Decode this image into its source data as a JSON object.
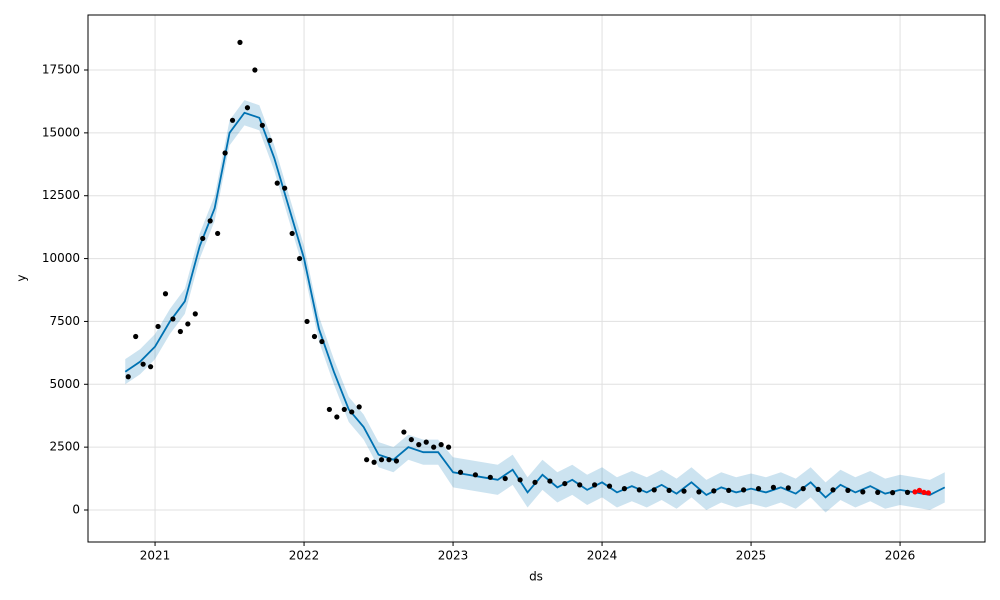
{
  "chart_data": {
    "type": "forecast",
    "x_label": "ds",
    "y_label": "y",
    "xlim": [
      2020.55,
      2026.57
    ],
    "ylim": [
      -1273,
      19688
    ],
    "xticks": [
      2021,
      2022,
      2023,
      2024,
      2025,
      2026
    ],
    "yticks": [
      0,
      2500,
      5000,
      7500,
      10000,
      12500,
      15000,
      17500
    ],
    "grid": true,
    "series": [
      {
        "kind": "band",
        "color": "#0072B2",
        "x": [
          2020.8,
          2020.9,
          2021.0,
          2021.1,
          2021.2,
          2021.3,
          2021.4,
          2021.5,
          2021.6,
          2021.7,
          2021.8,
          2021.9,
          2022.0,
          2022.1,
          2022.2,
          2022.3,
          2022.4,
          2022.5,
          2022.6,
          2022.7,
          2022.8,
          2022.9,
          2023.0,
          2023.1,
          2023.2,
          2023.3,
          2023.4,
          2023.5,
          2023.6,
          2023.7,
          2023.8,
          2023.9,
          2024.0,
          2024.1,
          2024.2,
          2024.3,
          2024.4,
          2024.5,
          2024.6,
          2024.7,
          2024.8,
          2024.9,
          2025.0,
          2025.1,
          2025.2,
          2025.3,
          2025.4,
          2025.5,
          2025.6,
          2025.7,
          2025.8,
          2025.9,
          2026.0,
          2026.1,
          2026.2,
          2026.3
        ],
        "lower": [
          5000,
          5400,
          6000,
          7000,
          7800,
          10000,
          11500,
          14500,
          15300,
          15100,
          13500,
          11500,
          9500,
          6700,
          5000,
          3500,
          2800,
          1700,
          1500,
          2000,
          1800,
          1800,
          900,
          800,
          700,
          600,
          1000,
          100,
          800,
          300,
          600,
          200,
          500,
          100,
          350,
          100,
          400,
          50,
          500,
          0,
          300,
          100,
          250,
          100,
          300,
          50,
          500,
          -100,
          400,
          100,
          350,
          50,
          200,
          100,
          0,
          300
        ],
        "upper": [
          6000,
          6400,
          7000,
          8000,
          8800,
          11000,
          12500,
          15500,
          16300,
          16100,
          14500,
          12500,
          10500,
          7700,
          6000,
          4500,
          3800,
          2700,
          2500,
          3000,
          2800,
          2800,
          2100,
          2000,
          1900,
          1800,
          2200,
          1300,
          2000,
          1500,
          1800,
          1400,
          1700,
          1300,
          1550,
          1300,
          1600,
          1250,
          1700,
          1200,
          1500,
          1300,
          1450,
          1300,
          1500,
          1250,
          1700,
          1100,
          1600,
          1300,
          1550,
          1250,
          1400,
          1300,
          1200,
          1500
        ]
      },
      {
        "kind": "line",
        "color": "#0072B2",
        "x": [
          2020.8,
          2020.9,
          2021.0,
          2021.1,
          2021.2,
          2021.3,
          2021.4,
          2021.5,
          2021.6,
          2021.7,
          2021.8,
          2021.9,
          2022.0,
          2022.1,
          2022.2,
          2022.3,
          2022.4,
          2022.5,
          2022.6,
          2022.7,
          2022.8,
          2022.9,
          2023.0,
          2023.1,
          2023.2,
          2023.3,
          2023.4,
          2023.5,
          2023.6,
          2023.7,
          2023.8,
          2023.9,
          2024.0,
          2024.1,
          2024.2,
          2024.3,
          2024.4,
          2024.5,
          2024.6,
          2024.7,
          2024.8,
          2024.9,
          2025.0,
          2025.1,
          2025.2,
          2025.3,
          2025.4,
          2025.5,
          2025.6,
          2025.7,
          2025.8,
          2025.9,
          2026.0,
          2026.1,
          2026.2,
          2026.3
        ],
        "values": [
          5500,
          5900,
          6500,
          7500,
          8300,
          10500,
          12000,
          15000,
          15800,
          15600,
          14000,
          12000,
          10000,
          7200,
          5500,
          4000,
          3300,
          2200,
          2000,
          2500,
          2300,
          2300,
          1500,
          1400,
          1300,
          1200,
          1600,
          700,
          1400,
          900,
          1200,
          800,
          1100,
          700,
          950,
          700,
          1000,
          650,
          1100,
          600,
          900,
          700,
          850,
          700,
          900,
          650,
          1100,
          500,
          1000,
          700,
          950,
          650,
          800,
          700,
          600,
          900
        ]
      },
      {
        "kind": "scatter",
        "color": "#000000",
        "x": [
          2020.82,
          2020.87,
          2020.92,
          2020.97,
          2021.02,
          2021.07,
          2021.12,
          2021.17,
          2021.22,
          2021.27,
          2021.32,
          2021.37,
          2021.42,
          2021.47,
          2021.52,
          2021.57,
          2021.62,
          2021.67,
          2021.72,
          2021.77,
          2021.82,
          2021.87,
          2021.92,
          2021.97,
          2022.02,
          2022.07,
          2022.12,
          2022.17,
          2022.22,
          2022.27,
          2022.32,
          2022.37,
          2022.42,
          2022.47,
          2022.52,
          2022.57,
          2022.62,
          2022.67,
          2022.72,
          2022.77,
          2022.82,
          2022.87,
          2022.92,
          2022.97,
          2023.05,
          2023.15,
          2023.25,
          2023.35,
          2023.45,
          2023.55,
          2023.65,
          2023.75,
          2023.85,
          2023.95,
          2024.05,
          2024.15,
          2024.25,
          2024.35,
          2024.45,
          2024.55,
          2024.65,
          2024.75,
          2024.85,
          2024.95,
          2025.05,
          2025.15,
          2025.25,
          2025.35,
          2025.45,
          2025.55,
          2025.65,
          2025.75,
          2025.85,
          2025.95,
          2026.05
        ],
        "values": [
          5300,
          6900,
          5800,
          5700,
          7300,
          8600,
          7600,
          7100,
          7400,
          7800,
          10800,
          11500,
          11000,
          14200,
          15500,
          18600,
          16000,
          17500,
          15300,
          14700,
          13000,
          12800,
          11000,
          10000,
          7500,
          6900,
          6700,
          4000,
          3700,
          4000,
          3900,
          4100,
          2000,
          1900,
          2000,
          2000,
          1950,
          3100,
          2800,
          2600,
          2700,
          2500,
          2600,
          2500,
          1500,
          1400,
          1300,
          1250,
          1200,
          1100,
          1150,
          1050,
          1000,
          1000,
          950,
          850,
          800,
          800,
          780,
          750,
          720,
          760,
          780,
          800,
          850,
          900,
          880,
          850,
          820,
          800,
          780,
          720,
          700,
          690,
          700
        ]
      },
      {
        "kind": "scatter",
        "color": "#ff0000",
        "x": [
          2026.1,
          2026.13,
          2026.16,
          2026.19
        ],
        "values": [
          720,
          780,
          700,
          680
        ]
      }
    ]
  }
}
